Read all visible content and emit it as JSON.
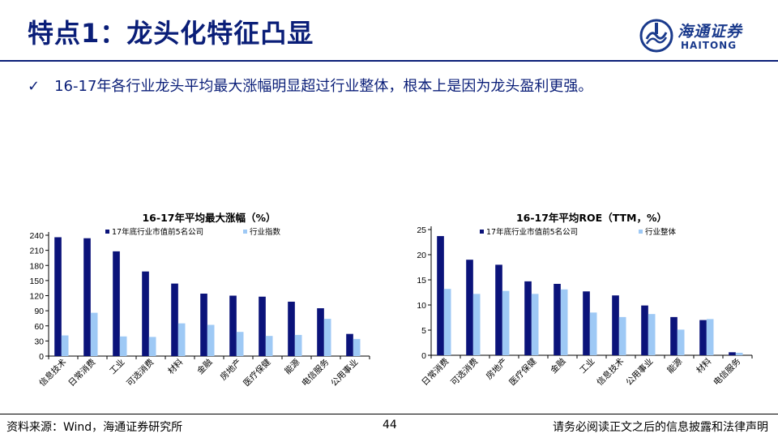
{
  "header": {
    "title": "特点1：龙头化特征凸显",
    "logo_cn": "海通证券",
    "logo_en": "HAITONG"
  },
  "bullet": {
    "text": "16-17年各行业龙头平均最大涨幅明显超过行业整体，根本上是因为龙头盈利更强。"
  },
  "colors": {
    "navy": "#0b137a",
    "light": "#9ec9f5",
    "brand": "#0a1e78"
  },
  "chart_data": [
    {
      "type": "bar",
      "title": "16-17年平均最大涨幅（%）",
      "categories": [
        "信息技术",
        "日常消费",
        "工业",
        "可选消费",
        "材料",
        "金融",
        "房地产",
        "医疗保健",
        "能源",
        "电信服务",
        "公用事业"
      ],
      "series": [
        {
          "name": "17年底行业市值前5名公司",
          "values": [
            236,
            234,
            208,
            168,
            144,
            124,
            120,
            118,
            108,
            95,
            44
          ]
        },
        {
          "name": "行业指数",
          "values": [
            41,
            86,
            39,
            38,
            65,
            62,
            48,
            40,
            42,
            74,
            34
          ]
        }
      ],
      "ylim": [
        0,
        240
      ],
      "yticks": [
        0,
        30,
        60,
        90,
        120,
        150,
        180,
        210,
        240
      ],
      "legend": "top"
    },
    {
      "type": "bar",
      "title": "16-17年平均ROE（TTM，%）",
      "categories": [
        "日常消费",
        "可选消费",
        "房地产",
        "医疗保健",
        "金融",
        "工业",
        "信息技术",
        "公用事业",
        "能源",
        "材料",
        "电信服务"
      ],
      "series": [
        {
          "name": "17年底行业市值前5名公司",
          "values": [
            23.7,
            19.0,
            18.0,
            14.7,
            14.2,
            12.7,
            11.9,
            9.9,
            7.6,
            7.0,
            0.6
          ]
        },
        {
          "name": "行业整体",
          "values": [
            13.2,
            12.2,
            12.8,
            12.2,
            13.1,
            8.5,
            7.6,
            8.2,
            5.1,
            7.2,
            0.5
          ]
        }
      ],
      "ylim": [
        0,
        25
      ],
      "yticks": [
        0,
        5,
        10,
        15,
        20,
        25
      ],
      "legend": "top"
    }
  ],
  "footer": {
    "source": "资料来源：Wind，海通证券研究所",
    "page": "44",
    "disclaimer": "请务必阅读正文之后的信息披露和法律声明"
  }
}
